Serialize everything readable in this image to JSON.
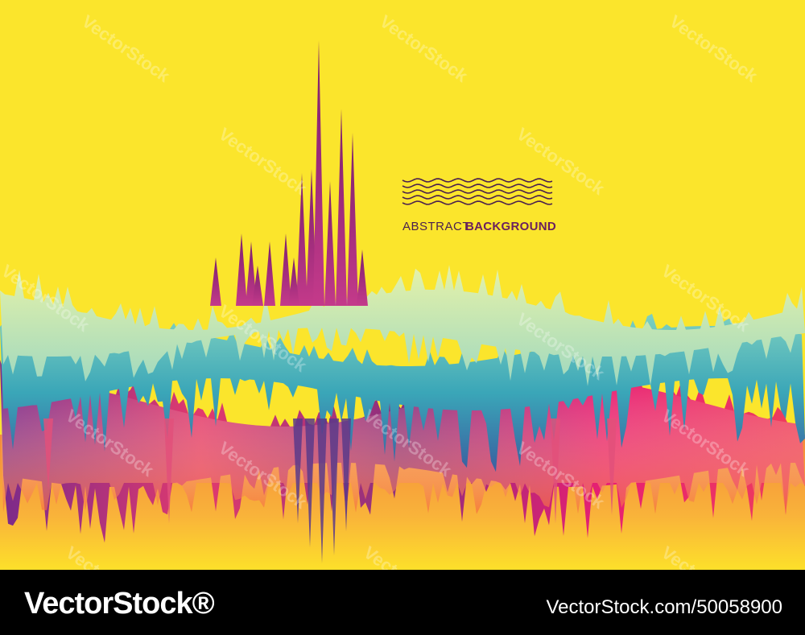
{
  "art": {
    "title_light": "ABSTRACT",
    "title_bold": "BACKGROUND"
  },
  "watermark": "VectorStock",
  "footer": {
    "logo": "VectorStock®",
    "image_id": "VectorStock.com/50058900"
  }
}
